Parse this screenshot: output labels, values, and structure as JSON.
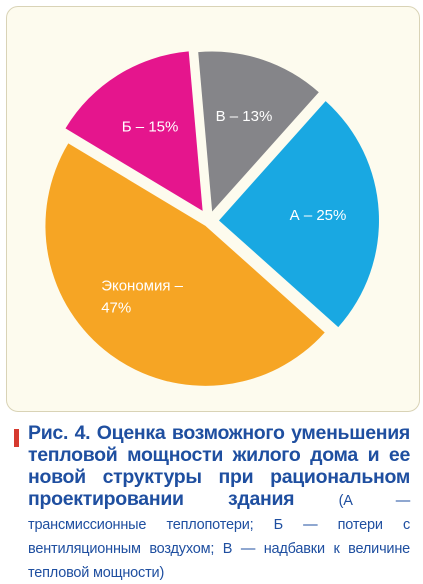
{
  "chart_data": {
    "type": "pie",
    "title": "",
    "slices": [
      {
        "label": "Б – 15%",
        "value": 15,
        "color": "#e5158d"
      },
      {
        "label": "В – 13%",
        "value": 13,
        "color": "#858589"
      },
      {
        "label": "А – 25%",
        "value": 25,
        "color": "#19a8e2"
      },
      {
        "label": "Экономия –\n47%",
        "value": 47,
        "color": "#f6a524"
      }
    ]
  },
  "caption": {
    "title": "Рис. 4. Оценка возможного уменьшения тепловой мощности жилого дома и ее новой структуры при рациональном проектировании здания",
    "note": "(А — трансмиссионные теплопотери; Б — потери с вентиляционным воздухом; В — надбавки к величине тепловой мощности)"
  }
}
